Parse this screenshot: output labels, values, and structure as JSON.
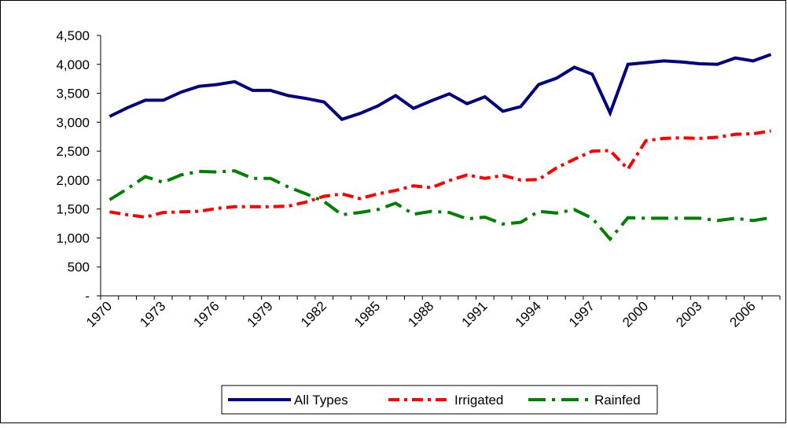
{
  "chart_data": {
    "type": "line",
    "categories": [
      "1970",
      null,
      null,
      "1973",
      null,
      null,
      "1976",
      null,
      null,
      "1979",
      null,
      null,
      "1982",
      null,
      null,
      "1985",
      null,
      null,
      "1988",
      null,
      null,
      "1991",
      null,
      null,
      "1994",
      null,
      null,
      "1997",
      null,
      null,
      "2000",
      null,
      null,
      "2003",
      null,
      null,
      "2006",
      null
    ],
    "series": [
      {
        "name": "All Types",
        "color": "#000080",
        "dash": "solid",
        "values": [
          3100,
          3250,
          3380,
          3380,
          3520,
          3620,
          3650,
          3700,
          3550,
          3550,
          3460,
          3410,
          3350,
          3050,
          3150,
          3280,
          3460,
          3240,
          3370,
          3490,
          3320,
          3440,
          3190,
          3270,
          3650,
          3760,
          3950,
          3830,
          3160,
          4000,
          4030,
          4060,
          4040,
          4010,
          4000,
          4110,
          4060,
          4170
        ]
      },
      {
        "name": "Irrigated",
        "color": "#ff0000",
        "dash": "dashdot",
        "values": [
          1450,
          1400,
          1360,
          1440,
          1450,
          1460,
          1510,
          1540,
          1540,
          1540,
          1550,
          1620,
          1720,
          1760,
          1680,
          1760,
          1820,
          1900,
          1870,
          1990,
          2090,
          2030,
          2080,
          2000,
          2010,
          2210,
          2360,
          2500,
          2510,
          2190,
          2680,
          2720,
          2730,
          2720,
          2740,
          2790,
          2800,
          2850
        ]
      },
      {
        "name": "Rainfed",
        "color": "#008000",
        "dash": "longdashdot",
        "values": [
          1660,
          1850,
          2060,
          1960,
          2090,
          2150,
          2140,
          2160,
          2030,
          2030,
          1880,
          1760,
          1630,
          1400,
          1440,
          1490,
          1600,
          1410,
          1460,
          1440,
          1330,
          1360,
          1240,
          1270,
          1460,
          1430,
          1490,
          1340,
          980,
          1350,
          1340,
          1340,
          1340,
          1340,
          1300,
          1340,
          1300,
          1350
        ]
      }
    ],
    "ylim": [
      0,
      4500
    ],
    "yticks": [
      {
        "value": 0,
        "label": "-"
      },
      500,
      {
        "value": 1000,
        "label": "1,000"
      },
      {
        "value": 1500,
        "label": "1,500"
      },
      {
        "value": 2000,
        "label": "2,000"
      },
      {
        "value": 2500,
        "label": "2,500"
      },
      {
        "value": 3000,
        "label": "3,000"
      },
      {
        "value": 3500,
        "label": "3,500"
      },
      {
        "value": 4000,
        "label": "4,000"
      },
      {
        "value": 4500,
        "label": "4,500"
      }
    ],
    "grid": false,
    "legend": "bottom"
  }
}
